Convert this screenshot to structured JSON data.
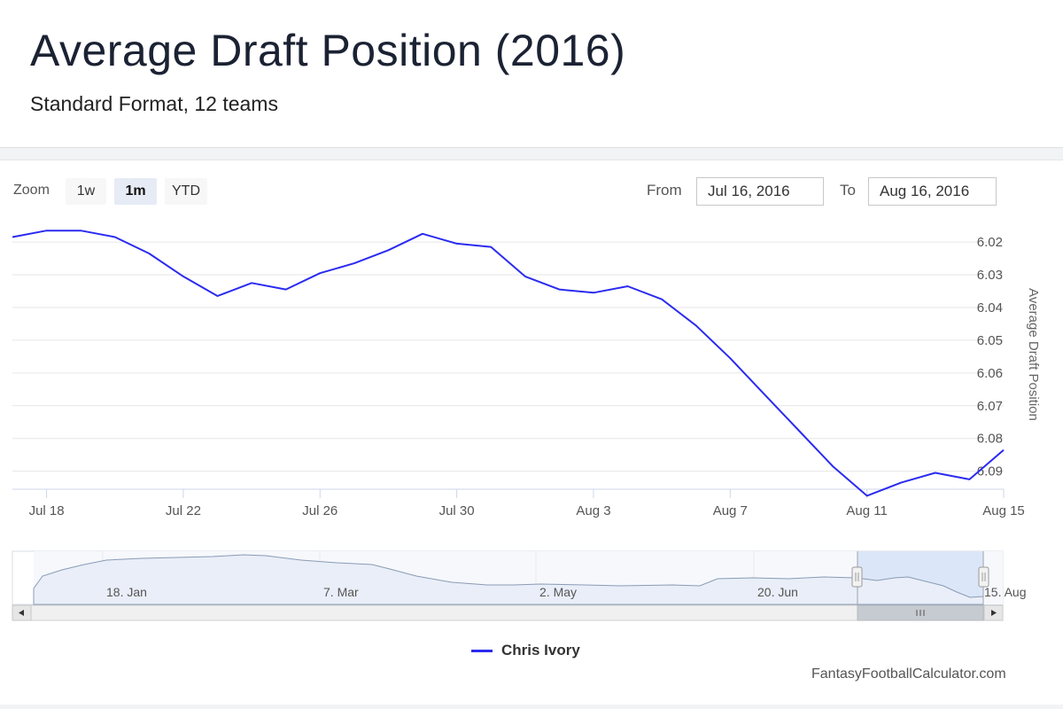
{
  "header": {
    "title": "Average Draft Position (2016)",
    "subtitle": "Standard Format, 12 teams"
  },
  "toolbar": {
    "zoom_label": "Zoom",
    "zoom_buttons": [
      "1w",
      "1m",
      "YTD"
    ],
    "active_zoom": "1m",
    "from_label": "From",
    "from_value": "Jul 16, 2016",
    "to_label": "To",
    "to_value": "Aug 16, 2016"
  },
  "colors": {
    "series": "#2b2bf0",
    "navigator_selection": "#d6e4f7",
    "grid": "#e6e6e6"
  },
  "legend": {
    "label": "Chris Ivory"
  },
  "credit": "FantasyFootballCalculator.com",
  "chart_data": {
    "type": "line",
    "title": "",
    "ylabel": "Average Draft Position",
    "xlabel": "",
    "y_reversed": true,
    "ylim": [
      6.017,
      6.0955
    ],
    "y_ticks": [
      "6.02",
      "6.03",
      "6.04",
      "6.05",
      "6.06",
      "6.07",
      "6.08",
      "6.09"
    ],
    "x_ticks": [
      "Jul 18",
      "Jul 22",
      "Jul 26",
      "Jul 30",
      "Aug 3",
      "Aug 7",
      "Aug 11",
      "Aug 15"
    ],
    "xlim": [
      "2016-07-17",
      "2016-08-15"
    ],
    "grid": true,
    "legend_position": "bottom-center",
    "series": [
      {
        "name": "Chris Ivory",
        "x": [
          "2016-07-17",
          "2016-07-18",
          "2016-07-19",
          "2016-07-20",
          "2016-07-21",
          "2016-07-22",
          "2016-07-23",
          "2016-07-24",
          "2016-07-25",
          "2016-07-26",
          "2016-07-27",
          "2016-07-28",
          "2016-07-29",
          "2016-07-30",
          "2016-07-31",
          "2016-08-01",
          "2016-08-02",
          "2016-08-03",
          "2016-08-04",
          "2016-08-05",
          "2016-08-06",
          "2016-08-07",
          "2016-08-08",
          "2016-08-09",
          "2016-08-10",
          "2016-08-11",
          "2016-08-12",
          "2016-08-13",
          "2016-08-14",
          "2016-08-15"
        ],
        "y": [
          6.0185,
          6.0165,
          6.0165,
          6.0185,
          6.0235,
          6.0305,
          6.0365,
          6.0325,
          6.0345,
          6.0295,
          6.0265,
          6.0225,
          6.0175,
          6.0205,
          6.0215,
          6.0305,
          6.0345,
          6.0355,
          6.0335,
          6.0375,
          6.0455,
          6.0555,
          6.0665,
          6.0775,
          6.0885,
          6.0975,
          6.0935,
          6.0905,
          6.0925,
          6.0835
        ]
      }
    ],
    "navigator": {
      "x_ticks": [
        "18. Jan",
        "7. Mar",
        "2. May",
        "20. Jun",
        "15. Aug"
      ],
      "selected_range": [
        "2016-07-16",
        "2016-08-16"
      ]
    }
  }
}
